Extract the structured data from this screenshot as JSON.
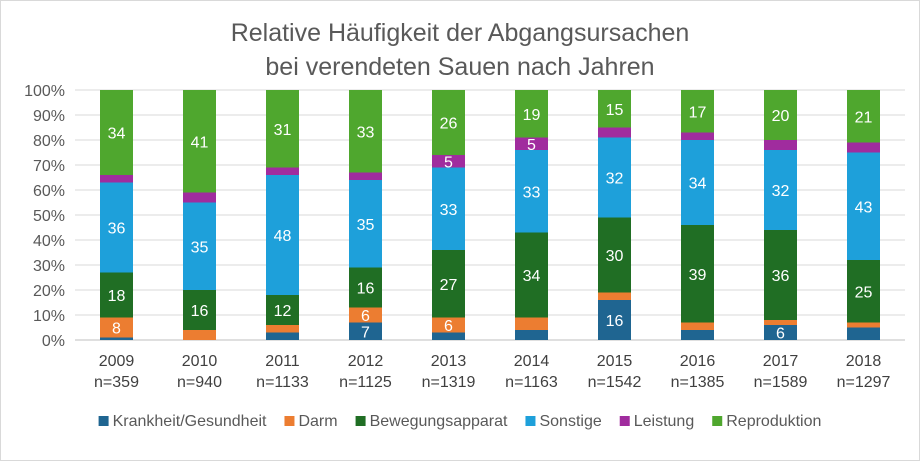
{
  "chart_data": {
    "type": "bar",
    "stacked": true,
    "normalized": true,
    "title_line1": "Relative Häufigkeit der Abgangsursachen",
    "title_line2": "bei verendeten Sauen nach Jahren",
    "xlabel": "",
    "ylabel": "",
    "ylim": [
      0,
      100
    ],
    "y_ticks": [
      "0%",
      "10%",
      "20%",
      "30%",
      "40%",
      "50%",
      "60%",
      "70%",
      "80%",
      "90%",
      "100%"
    ],
    "categories": [
      "2009",
      "2010",
      "2011",
      "2012",
      "2013",
      "2014",
      "2015",
      "2016",
      "2017",
      "2018"
    ],
    "sample_sizes": [
      "n=359",
      "n=940",
      "n=1133",
      "n=1125",
      "n=1319",
      "n=1163",
      "n=1542",
      "n=1385",
      "n=1589",
      "n=1297"
    ],
    "legend_position": "bottom",
    "series": [
      {
        "name": "Krankheit/Gesundheit",
        "color": "#1f6591",
        "label_color": "#ffffff",
        "values": [
          1,
          0,
          3,
          7,
          3,
          4,
          16,
          4,
          6,
          5
        ],
        "labels": [
          "",
          "",
          "",
          "7",
          "",
          "",
          "16",
          "",
          "6",
          ""
        ]
      },
      {
        "name": "Darm",
        "color": "#ec7d31",
        "label_color": "#ffffff",
        "values": [
          8,
          4,
          3,
          6,
          6,
          5,
          3,
          3,
          2,
          2
        ],
        "labels": [
          "8",
          "",
          "",
          "6",
          "6",
          "",
          "",
          "",
          "",
          ""
        ]
      },
      {
        "name": "Bewegungsapparat",
        "color": "#206e24",
        "label_color": "#ffffff",
        "values": [
          18,
          16,
          12,
          16,
          27,
          34,
          30,
          39,
          36,
          25
        ],
        "labels": [
          "18",
          "16",
          "12",
          "16",
          "27",
          "34",
          "30",
          "39",
          "36",
          "25"
        ]
      },
      {
        "name": "Sonstige",
        "color": "#1ea0da",
        "label_color": "#ffffff",
        "values": [
          36,
          35,
          48,
          35,
          33,
          33,
          32,
          34,
          32,
          43
        ],
        "labels": [
          "36",
          "35",
          "48",
          "35",
          "33",
          "33",
          "32",
          "34",
          "32",
          "43"
        ]
      },
      {
        "name": "Leistung",
        "color": "#a02c9e",
        "label_color": "#ffffff",
        "values": [
          3,
          4,
          3,
          3,
          5,
          5,
          4,
          3,
          4,
          4
        ],
        "labels": [
          "",
          "",
          "",
          "",
          "5",
          "5",
          "",
          "",
          "",
          ""
        ]
      },
      {
        "name": "Reproduktion",
        "color": "#4fa72e",
        "label_color": "#ffffff",
        "values": [
          34,
          41,
          31,
          33,
          26,
          19,
          15,
          17,
          20,
          21
        ],
        "labels": [
          "34",
          "41",
          "31",
          "33",
          "26",
          "19",
          "15",
          "17",
          "20",
          "21"
        ]
      }
    ]
  }
}
